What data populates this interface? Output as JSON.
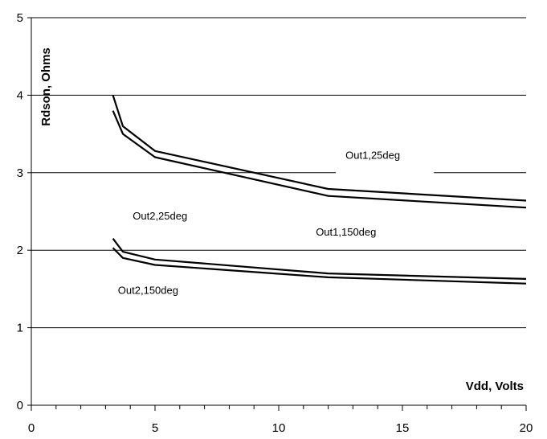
{
  "chart_data": {
    "type": "line",
    "title": "",
    "xlabel": "Vdd, Volts",
    "ylabel": "Rdson, Ohms",
    "xlim": [
      0,
      20
    ],
    "ylim": [
      0,
      5
    ],
    "x_ticks": [
      "0",
      "5",
      "10",
      "15",
      "20"
    ],
    "y_ticks": [
      "0",
      "1",
      "2",
      "3",
      "4",
      "5"
    ],
    "grid": "horizontal",
    "legend": "none",
    "line_color": "#000000",
    "series": [
      {
        "name": "Out1,25deg",
        "x": [
          3.3,
          3.7,
          5,
          12,
          20
        ],
        "y": [
          4.0,
          3.6,
          3.28,
          2.79,
          2.64
        ]
      },
      {
        "name": "Out1,150deg",
        "x": [
          3.3,
          3.7,
          5,
          12,
          20
        ],
        "y": [
          3.8,
          3.5,
          3.2,
          2.7,
          2.55
        ]
      },
      {
        "name": "Out2,25deg",
        "x": [
          3.3,
          3.7,
          5,
          12,
          20
        ],
        "y": [
          2.15,
          1.98,
          1.88,
          1.7,
          1.63
        ]
      },
      {
        "name": "Out2,150deg",
        "x": [
          3.3,
          3.7,
          5,
          12,
          20
        ],
        "y": [
          2.03,
          1.9,
          1.81,
          1.65,
          1.57
        ]
      }
    ],
    "annotations": [
      {
        "text": "Out1,25deg",
        "x": 12.7,
        "y": 3.22
      },
      {
        "text": "Out2,25deg",
        "x": 4.1,
        "y": 2.44
      },
      {
        "text": "Out1,150deg",
        "x": 11.5,
        "y": 2.23
      },
      {
        "text": "Out2,150deg",
        "x": 3.5,
        "y": 1.48
      }
    ]
  }
}
